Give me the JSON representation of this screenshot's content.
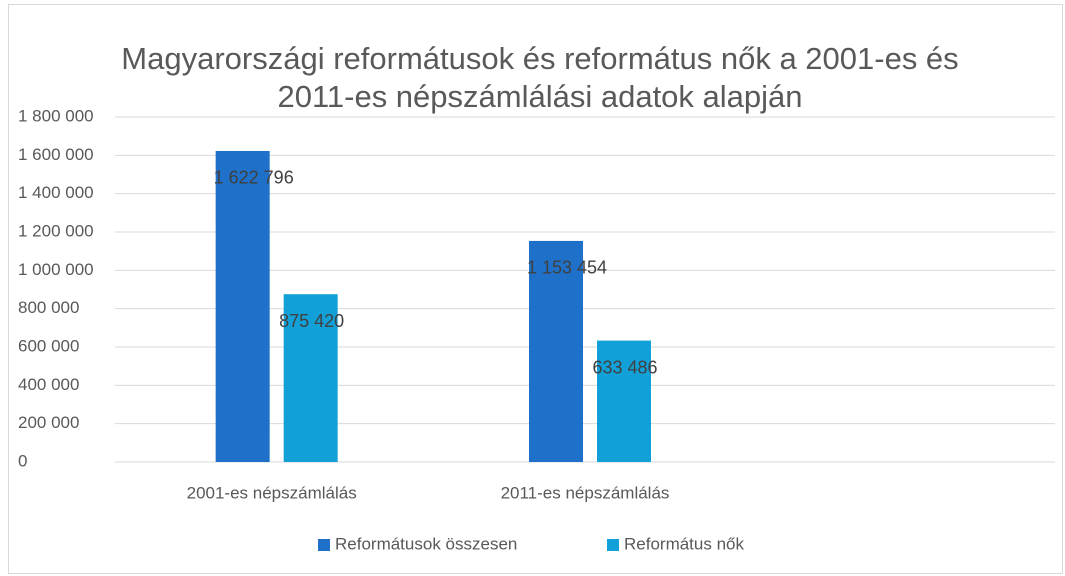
{
  "chart_data": {
    "type": "bar",
    "title": "Magyarországi reformátusok és református nők a 2001-es és 2011-es népszámlálási adatok alapján",
    "categories": [
      "2001-es népszámlálás",
      "2011-es népszámlálás",
      null
    ],
    "series": [
      {
        "name": "Reformátusok összesen",
        "color": "#1f70c8",
        "values": [
          1622796,
          1153454,
          null
        ],
        "value_labels": [
          "1 622 796",
          "1 153 454",
          null
        ]
      },
      {
        "name": "Református nők",
        "color": "#12a0d8",
        "values": [
          875420,
          633486,
          null
        ],
        "value_labels": [
          "875 420",
          "633 486",
          null
        ]
      }
    ],
    "ylim": [
      0,
      1800000
    ],
    "yticks": [
      0,
      {
        "value": 200000,
        "label": "200 000"
      },
      {
        "value": 400000,
        "label": "400 000"
      },
      {
        "value": 600000,
        "label": "600 000"
      },
      {
        "value": 800000,
        "label": "800 000"
      },
      {
        "value": 1000000,
        "label": "1 000 000"
      },
      {
        "value": 1200000,
        "label": "1 200 000"
      },
      {
        "value": 1400000,
        "label": "1 400 000"
      },
      {
        "value": 1600000,
        "label": "1 600 000"
      },
      {
        "value": 1800000,
        "label": "1 800 000"
      }
    ],
    "grid": true,
    "legend": "bottom"
  }
}
